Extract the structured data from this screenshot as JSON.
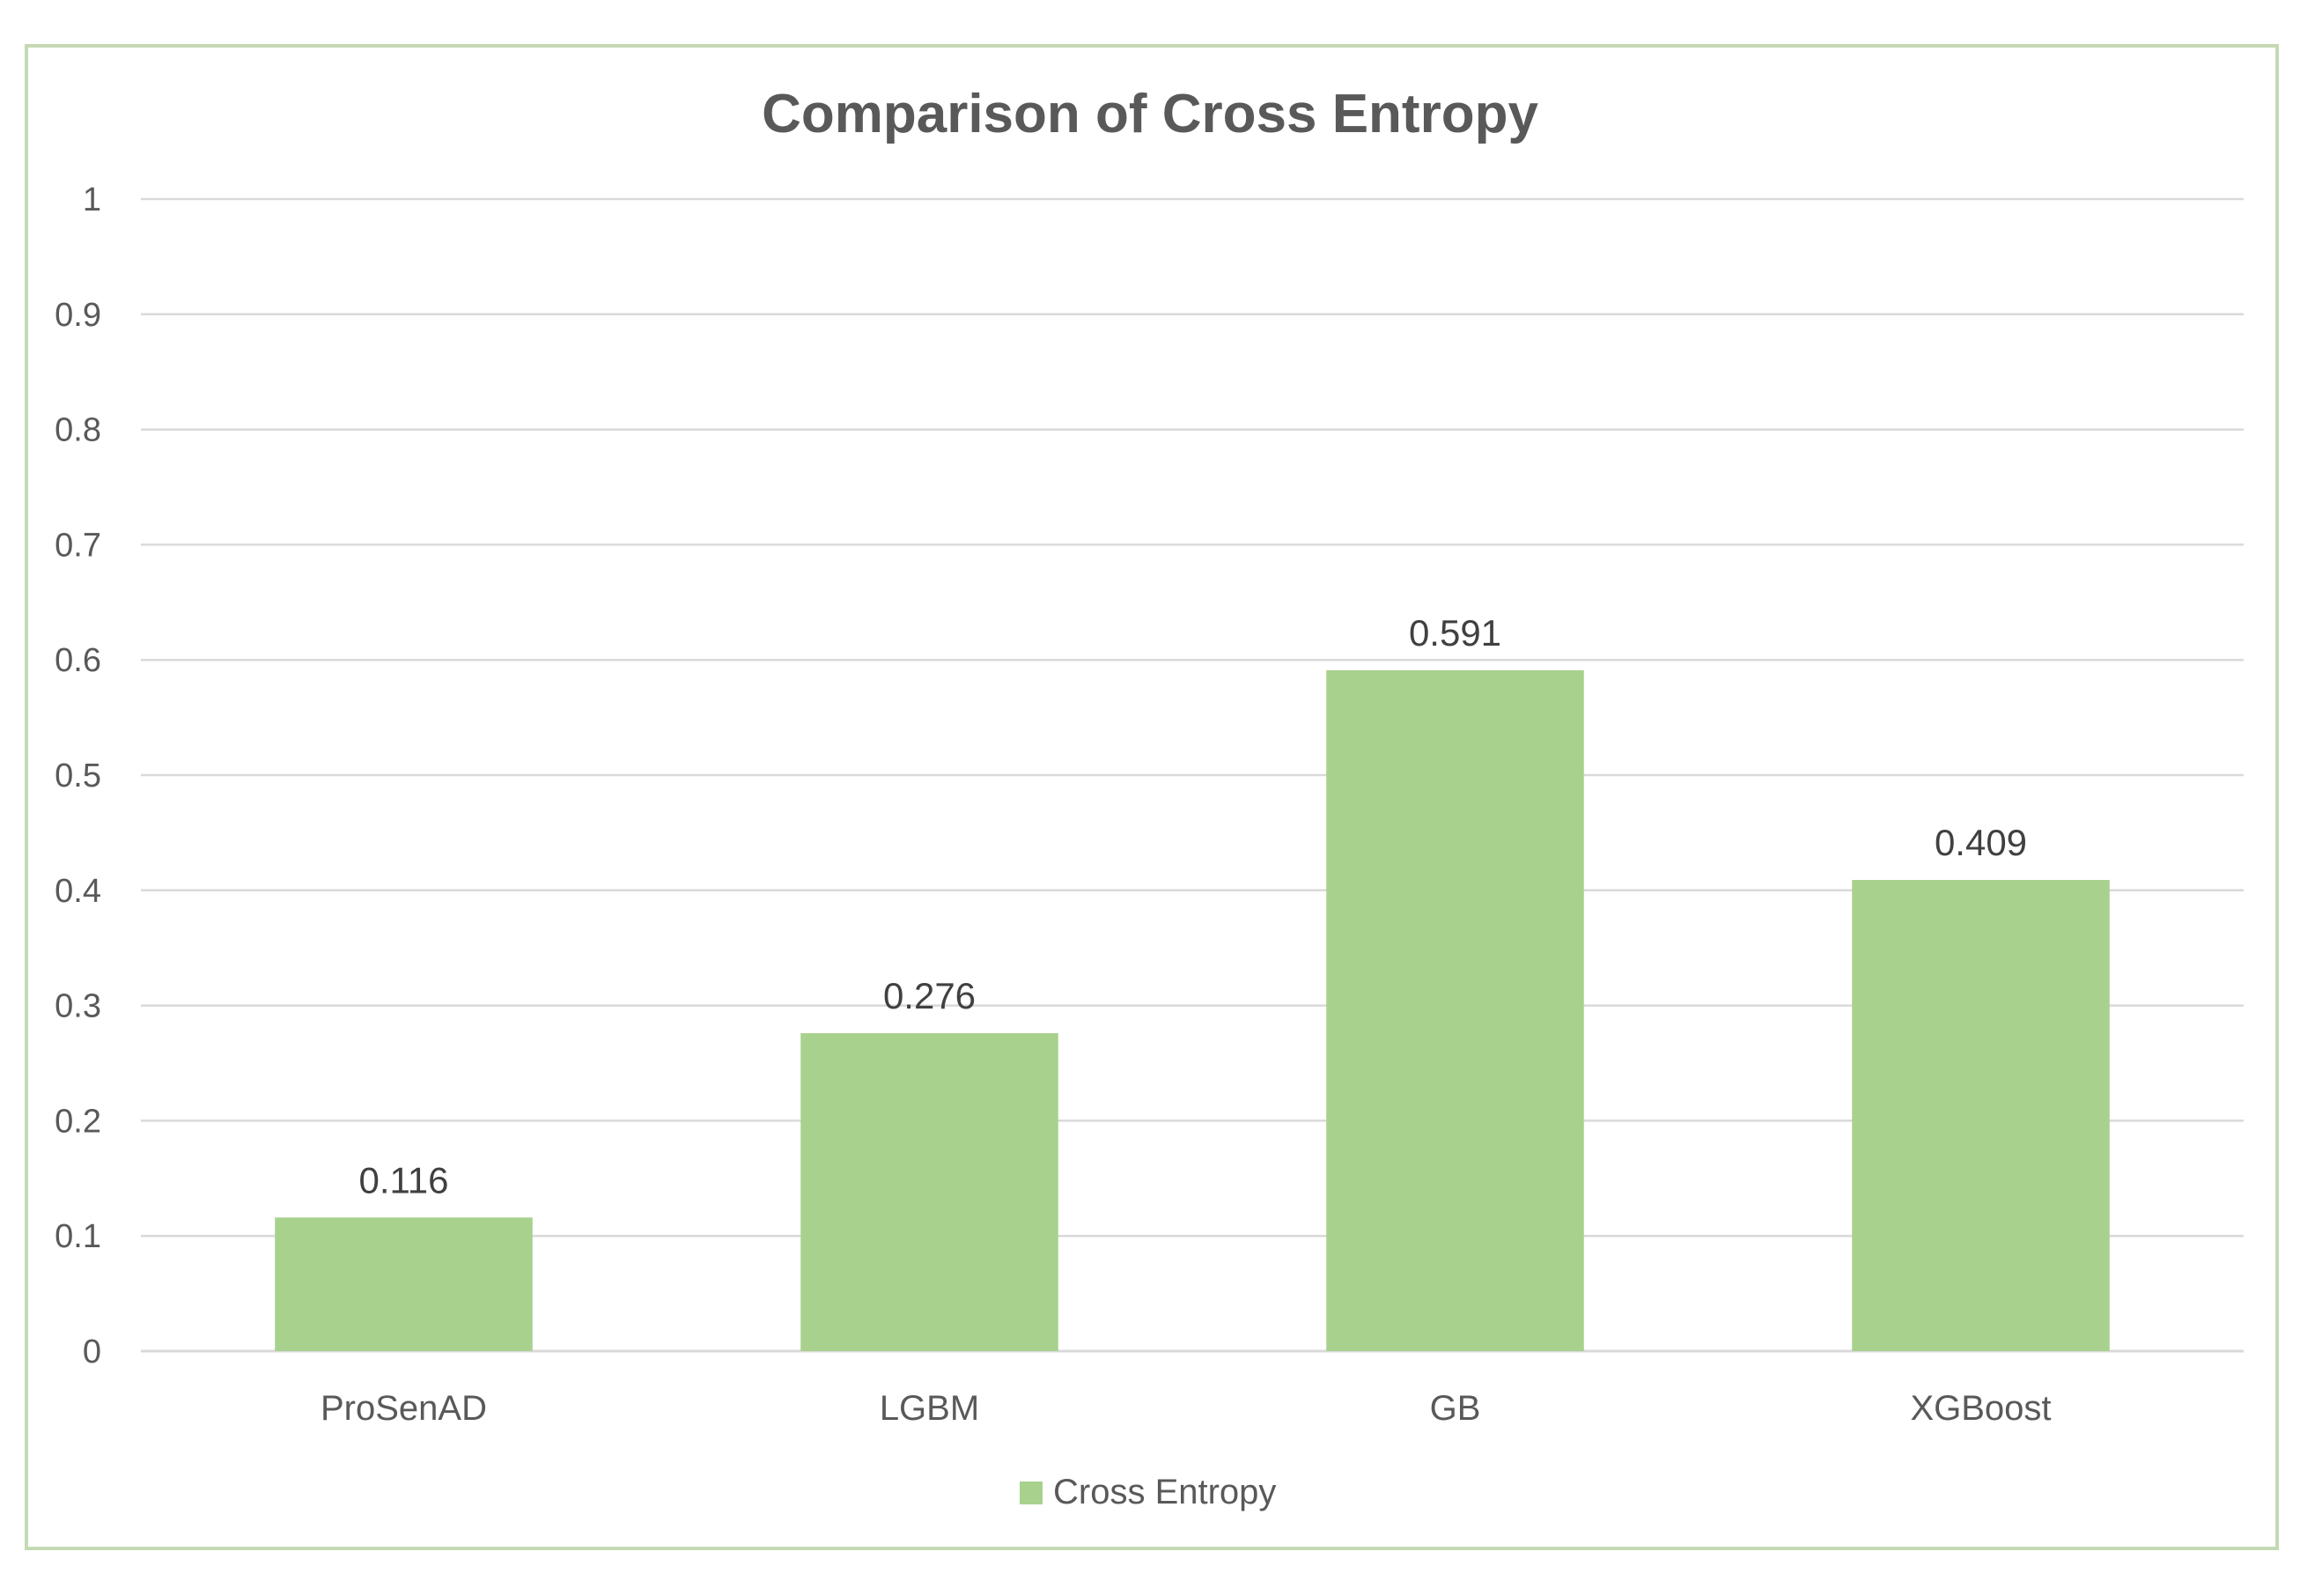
{
  "chart_data": {
    "type": "bar",
    "title": "Comparison of Cross Entropy",
    "categories": [
      "ProSenAD",
      "LGBM",
      "GB",
      "XGBoost"
    ],
    "series": [
      {
        "name": "Cross Entropy",
        "values": [
          0.116,
          0.276,
          0.591,
          0.409
        ]
      }
    ],
    "data_labels": [
      "0.116",
      "0.276",
      "0.591",
      "0.409"
    ],
    "y_ticks": [
      "0",
      "0.1",
      "0.2",
      "0.3",
      "0.4",
      "0.5",
      "0.6",
      "0.7",
      "0.8",
      "0.9",
      "1"
    ],
    "ylim": [
      0,
      1
    ],
    "xlabel": "",
    "ylabel": "",
    "grid": true,
    "legend": {
      "position": "bottom",
      "entries": [
        "Cross Entropy"
      ]
    },
    "colors": {
      "bar": "#a9d18e",
      "grid": "#d9d9d9",
      "border": "#c5d9b3",
      "text": "#595959"
    }
  }
}
